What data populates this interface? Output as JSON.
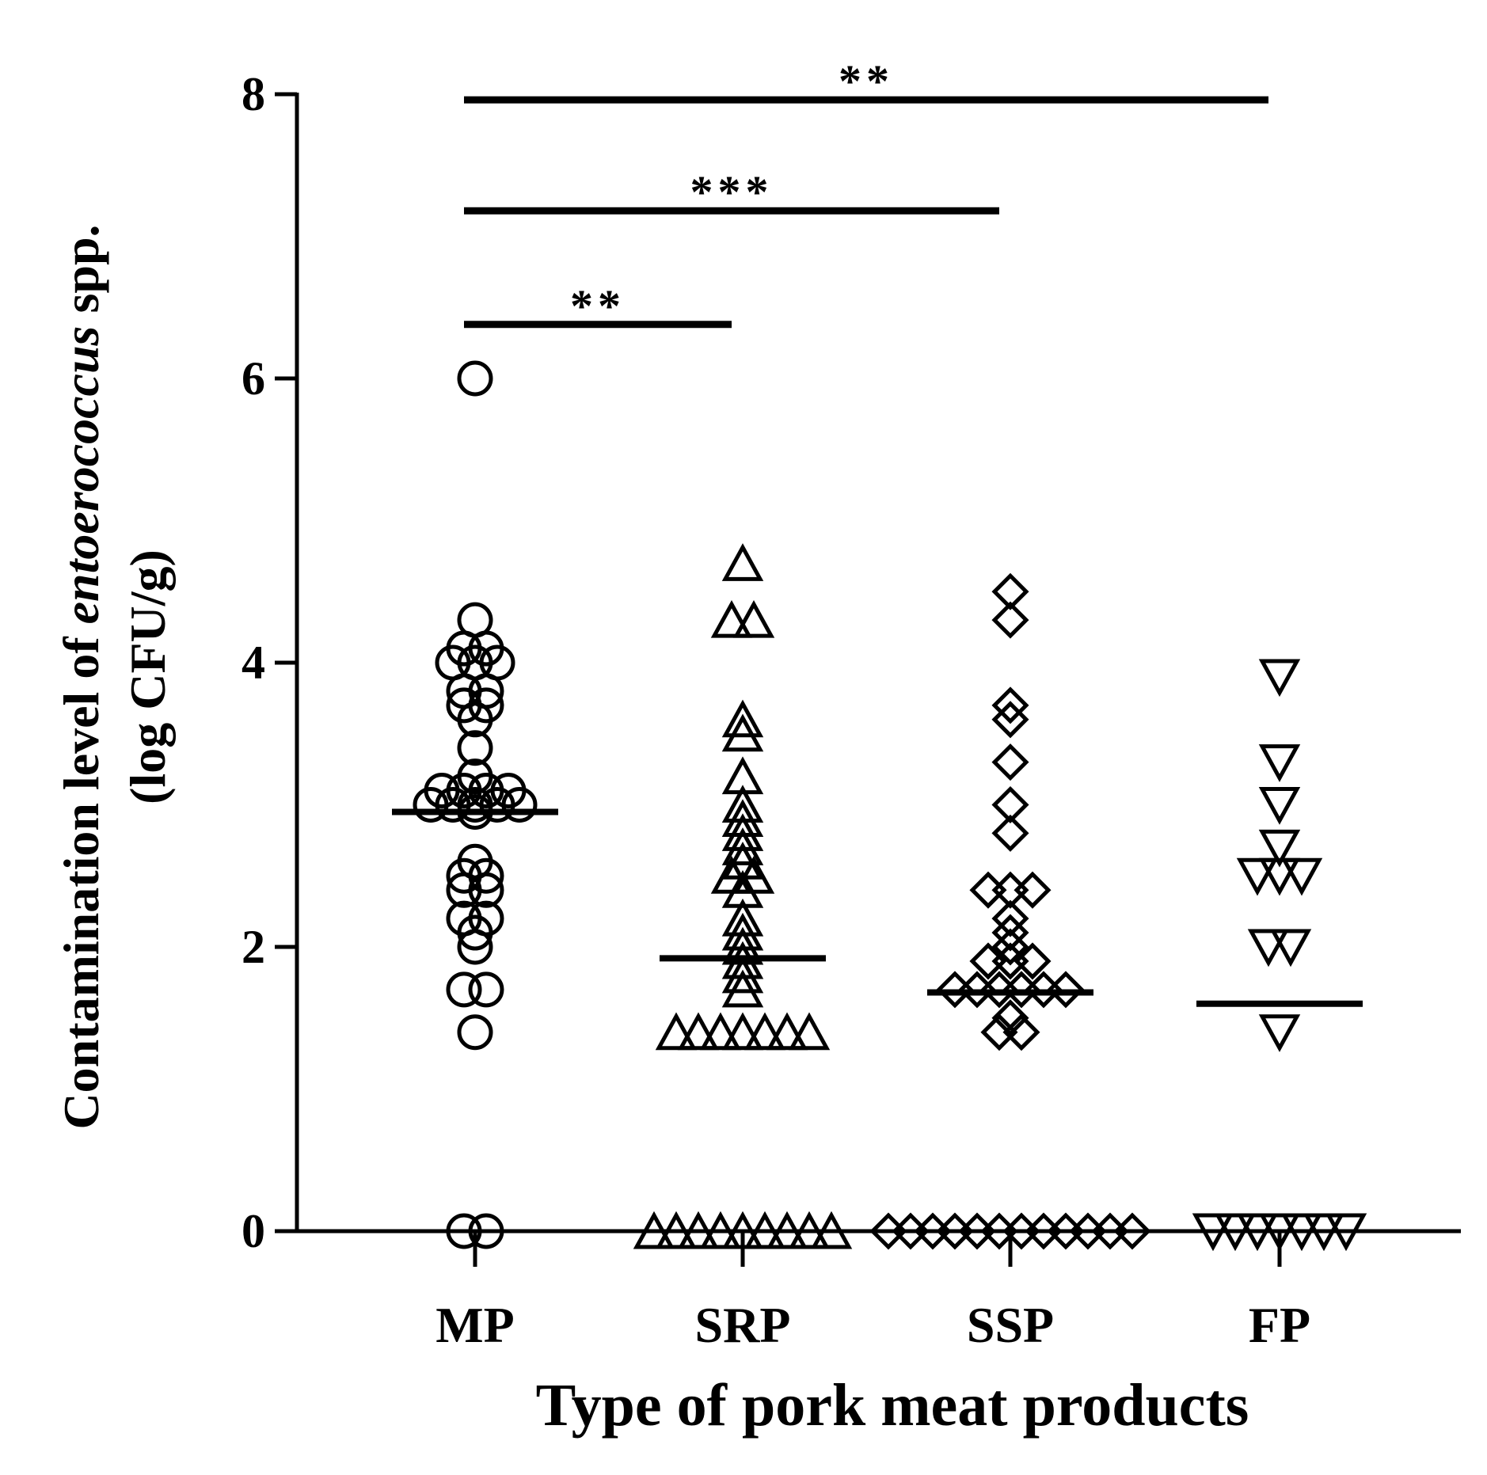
{
  "chart_data": {
    "type": "scatter",
    "title": "",
    "xlabel": "Type of pork meat products",
    "ylabel": {
      "line1_prefix": "Contamination level of ",
      "line1_italic": "entoerococcus",
      "line1_suffix": " spp.",
      "line2": "(log CFU/g)"
    },
    "ylim": [
      0,
      8
    ],
    "yticks": [
      0,
      2,
      4,
      6,
      8
    ],
    "categories": [
      "MP",
      "SRP",
      "SSP",
      "FP"
    ],
    "grid": false,
    "series": [
      {
        "category": "MP",
        "marker": "circle",
        "median": 2.95,
        "values": [
          6.0,
          4.3,
          4.1,
          4.1,
          4.0,
          4.0,
          4.0,
          3.8,
          3.8,
          3.7,
          3.7,
          3.6,
          3.4,
          3.2,
          3.1,
          3.1,
          3.1,
          3.1,
          3.0,
          3.0,
          3.0,
          3.0,
          3.0,
          2.95,
          2.6,
          2.5,
          2.5,
          2.4,
          2.4,
          2.2,
          2.2,
          2.1,
          2.0,
          1.7,
          1.7,
          1.4,
          0,
          0
        ]
      },
      {
        "category": "SRP",
        "marker": "triangle-up",
        "median": 1.92,
        "values": [
          4.7,
          4.3,
          4.3,
          3.6,
          3.5,
          3.2,
          3.0,
          2.9,
          2.8,
          2.7,
          2.6,
          2.5,
          2.5,
          2.4,
          2.2,
          2.1,
          2.0,
          1.9,
          1.8,
          1.7,
          1.4,
          1.4,
          1.4,
          1.4,
          1.4,
          1.4,
          1.4,
          0,
          0,
          0,
          0,
          0,
          0,
          0,
          0,
          0
        ]
      },
      {
        "category": "SSP",
        "marker": "diamond",
        "median": 1.68,
        "values": [
          4.5,
          4.3,
          3.7,
          3.6,
          3.3,
          3.0,
          2.8,
          2.4,
          2.4,
          2.4,
          2.2,
          2.1,
          2.0,
          1.9,
          1.9,
          1.9,
          1.7,
          1.7,
          1.7,
          1.7,
          1.7,
          1.7,
          1.5,
          1.4,
          1.4,
          0,
          0,
          0,
          0,
          0,
          0,
          0,
          0,
          0,
          0,
          0,
          0
        ]
      },
      {
        "category": "FP",
        "marker": "triangle-down",
        "median": 1.6,
        "values": [
          3.9,
          3.3,
          3.0,
          2.7,
          2.5,
          2.5,
          2.5,
          2.0,
          2.0,
          1.4,
          0,
          0,
          0,
          0,
          0,
          0,
          0
        ]
      }
    ],
    "significance": [
      {
        "from": "MP",
        "to": "SRP",
        "label": "**",
        "y": 6.38
      },
      {
        "from": "MP",
        "to": "SSP",
        "label": "***",
        "y": 7.18
      },
      {
        "from": "MP",
        "to": "FP",
        "label": "**",
        "y": 7.96
      }
    ]
  }
}
